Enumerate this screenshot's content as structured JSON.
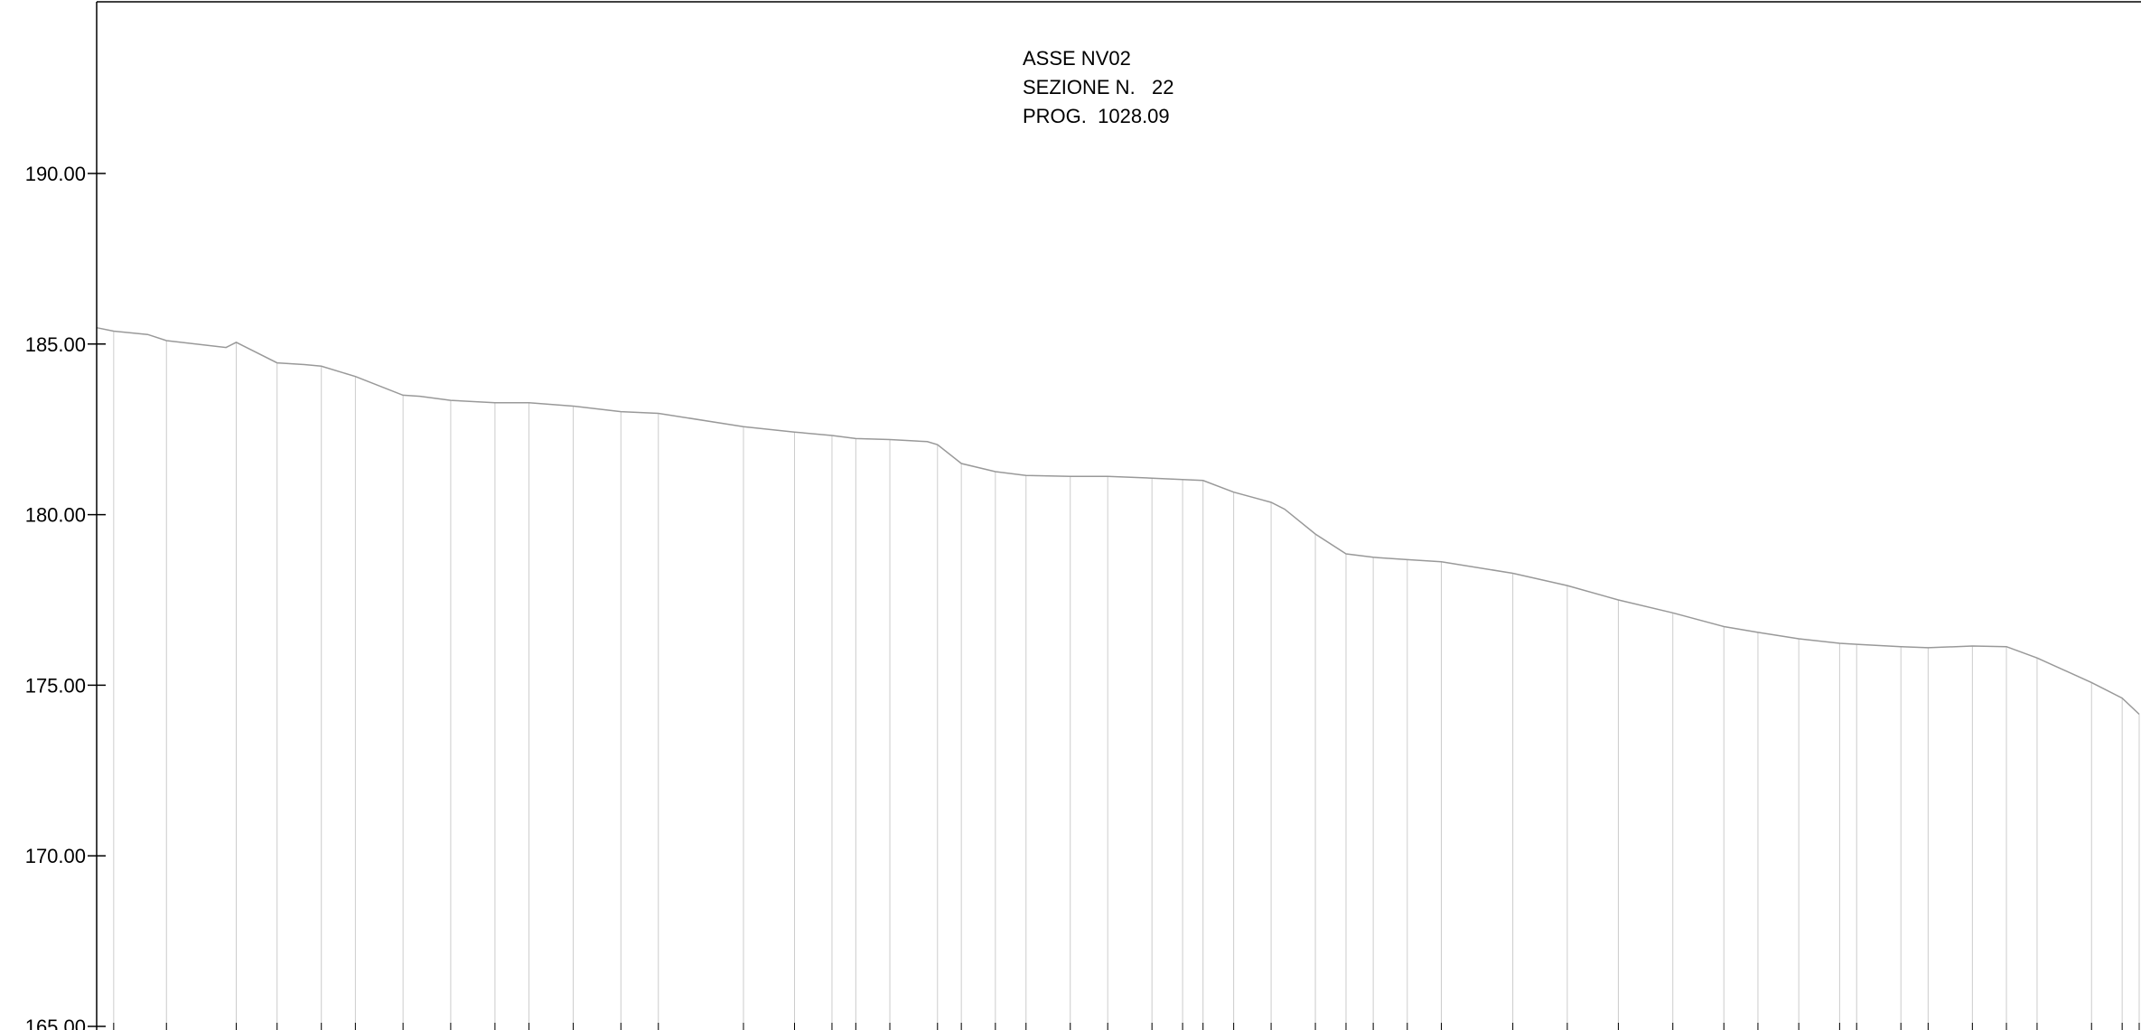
{
  "header": {
    "axis_label": "ASSE NV02",
    "section_label": "SEZIONE N.   22",
    "progressive_label": "PROG.  1028.09"
  },
  "colors": {
    "profile": "#999999",
    "verticals": "#cccccc",
    "frame": "#000000"
  },
  "chart_data": {
    "type": "line",
    "ylim": [
      165.0,
      195.1
    ],
    "xlim": [
      0,
      60
    ],
    "y_ticks": [
      {
        "value": 190,
        "label": "190.00"
      },
      {
        "value": 185,
        "label": "185.00"
      },
      {
        "value": 180,
        "label": "180.00"
      },
      {
        "value": 175,
        "label": "175.00"
      },
      {
        "value": 170,
        "label": "170.00"
      },
      {
        "value": 165,
        "label": "165.00"
      }
    ],
    "series": [
      {
        "points": [
          [
            0.0,
            185.48
          ],
          [
            0.5,
            185.38
          ],
          [
            1.5,
            185.28
          ],
          [
            2.05,
            185.1
          ],
          [
            3.8,
            184.9
          ],
          [
            4.1,
            185.05
          ],
          [
            5.3,
            184.45
          ],
          [
            6.1,
            184.4
          ],
          [
            6.6,
            184.35
          ],
          [
            7.6,
            184.05
          ],
          [
            9.0,
            183.5
          ],
          [
            9.5,
            183.47
          ],
          [
            10.4,
            183.35
          ],
          [
            11.7,
            183.28
          ],
          [
            12.7,
            183.28
          ],
          [
            14.0,
            183.18
          ],
          [
            15.4,
            183.02
          ],
          [
            16.5,
            182.97
          ],
          [
            19.0,
            182.58
          ],
          [
            20.5,
            182.42
          ],
          [
            21.6,
            182.32
          ],
          [
            22.3,
            182.23
          ],
          [
            23.3,
            182.2
          ],
          [
            24.4,
            182.14
          ],
          [
            24.7,
            182.05
          ],
          [
            25.4,
            181.5
          ],
          [
            26.4,
            181.26
          ],
          [
            27.3,
            181.15
          ],
          [
            28.6,
            181.12
          ],
          [
            29.7,
            181.12
          ],
          [
            31.0,
            181.07
          ],
          [
            31.9,
            181.03
          ],
          [
            32.5,
            181.0
          ],
          [
            33.4,
            180.66
          ],
          [
            34.5,
            180.36
          ],
          [
            34.9,
            180.16
          ],
          [
            35.8,
            179.43
          ],
          [
            36.7,
            178.85
          ],
          [
            37.5,
            178.75
          ],
          [
            38.5,
            178.68
          ],
          [
            39.5,
            178.62
          ],
          [
            41.6,
            178.28
          ],
          [
            43.2,
            177.92
          ],
          [
            44.7,
            177.5
          ],
          [
            46.3,
            177.12
          ],
          [
            47.8,
            176.72
          ],
          [
            48.8,
            176.55
          ],
          [
            50.0,
            176.36
          ],
          [
            51.2,
            176.23
          ],
          [
            51.7,
            176.2
          ],
          [
            53.0,
            176.13
          ],
          [
            53.8,
            176.1
          ],
          [
            55.1,
            176.15
          ],
          [
            56.1,
            176.13
          ],
          [
            57.0,
            175.8
          ],
          [
            58.6,
            175.08
          ],
          [
            59.5,
            174.62
          ],
          [
            60.0,
            174.15
          ]
        ]
      }
    ],
    "verticals_x": [
      0.5,
      2.05,
      4.1,
      5.3,
      6.6,
      7.6,
      9.0,
      10.4,
      11.7,
      12.7,
      14.0,
      15.4,
      16.5,
      19.0,
      20.5,
      21.6,
      22.3,
      23.3,
      24.7,
      25.4,
      26.4,
      27.3,
      28.6,
      29.7,
      31.0,
      31.9,
      32.5,
      33.4,
      34.5,
      35.8,
      36.7,
      37.5,
      38.5,
      39.5,
      41.6,
      43.2,
      44.7,
      46.3,
      47.8,
      48.8,
      50.0,
      51.2,
      51.7,
      53.0,
      53.8,
      55.1,
      56.1,
      57.0,
      58.6,
      59.5,
      60.0
    ],
    "grid": false,
    "legend": "none"
  }
}
